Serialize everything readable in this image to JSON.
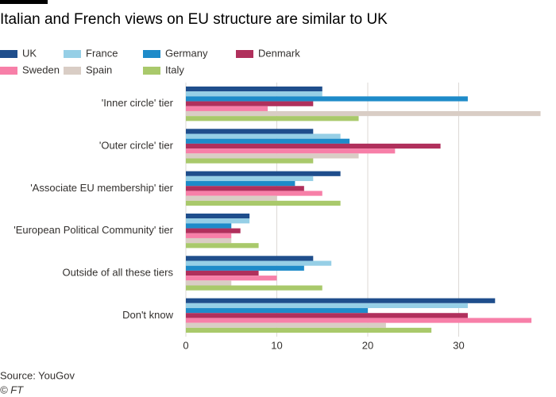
{
  "chart_data": {
    "type": "hbar",
    "title": "Italian and French views on EU structure are similar to UK",
    "categories": [
      "'Inner circle' tier",
      "'Outer circle' tier",
      "'Associate EU membership' tier",
      "'European Political Community' tier",
      "Outside of all these tiers",
      "Don't know"
    ],
    "series": [
      {
        "name": "UK",
        "color": "#1f4e8c",
        "values": [
          15,
          14,
          17,
          7,
          14,
          34
        ]
      },
      {
        "name": "France",
        "color": "#96cfe6",
        "values": [
          15,
          17,
          14,
          7,
          16,
          31
        ]
      },
      {
        "name": "Germany",
        "color": "#1e8bc9",
        "values": [
          31,
          18,
          12,
          5,
          13,
          20
        ]
      },
      {
        "name": "Denmark",
        "color": "#b0305c",
        "values": [
          14,
          28,
          13,
          6,
          8,
          31
        ]
      },
      {
        "name": "Sweden",
        "color": "#f77fa8",
        "values": [
          9,
          23,
          15,
          5,
          10,
          38
        ]
      },
      {
        "name": "Spain",
        "color": "#d9cdc5",
        "values": [
          39,
          19,
          10,
          5,
          5,
          22
        ]
      },
      {
        "name": "Italy",
        "color": "#a9c96b",
        "values": [
          19,
          14,
          17,
          8,
          15,
          27
        ]
      }
    ],
    "xlim": [
      0,
      40
    ],
    "xticks": [
      0,
      10,
      20,
      30
    ],
    "grid": true,
    "source": "Source: YouGov",
    "credit": "© FT"
  }
}
